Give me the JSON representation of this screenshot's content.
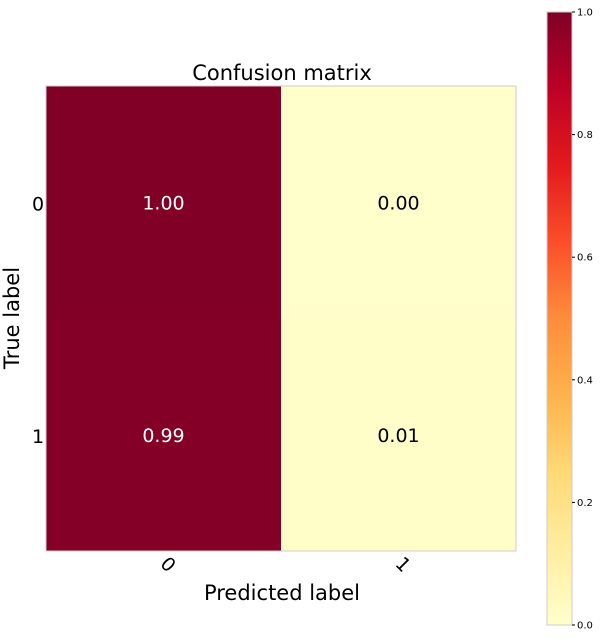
{
  "chart_data": {
    "type": "heatmap",
    "title": "Confusion matrix",
    "xlabel": "Predicted label",
    "ylabel": "True label",
    "x_categories": [
      "0",
      "1"
    ],
    "y_categories": [
      "0",
      "1"
    ],
    "values": [
      [
        1.0,
        0.0
      ],
      [
        0.99,
        0.01
      ]
    ],
    "value_labels": [
      [
        "1.00",
        "0.00"
      ],
      [
        "0.99",
        "0.01"
      ]
    ],
    "colormap": "YlOrRd",
    "colorbar": {
      "range": [
        0.0,
        1.0
      ],
      "tick_labels": [
        "0.0",
        "0.2",
        "0.4",
        "0.6",
        "0.8",
        "1.0"
      ],
      "ticks": [
        0.0,
        0.2,
        0.4,
        0.6,
        0.8,
        1.0
      ]
    },
    "grid": false
  },
  "colors": {
    "low": "#ffffcc",
    "high": "#800026",
    "text_on_dark": "#ffffff",
    "text_on_light": "#000000"
  }
}
